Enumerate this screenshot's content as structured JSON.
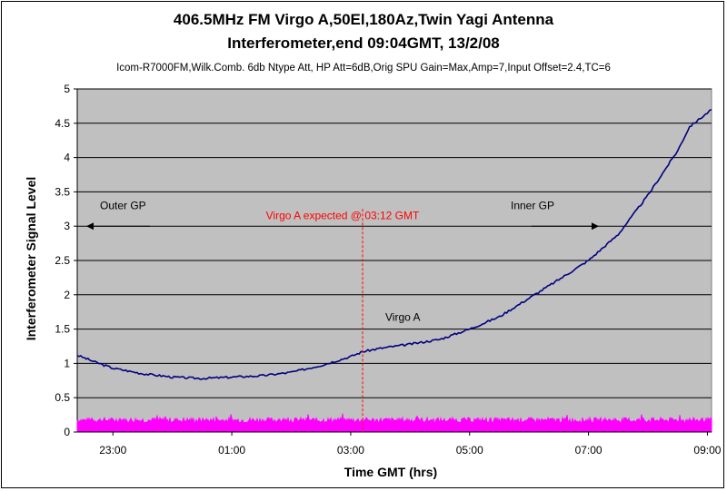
{
  "title": "406.5MHz FM Virgo A,50El,180Az,Twin Yagi Antenna",
  "subtitle": "Interferometer,end 09:04GMT, 13/2/08",
  "settings_line": "Icom-R7000FM,Wilk.Comb. 6db Ntype Att, HP Att=6dB,Orig SPU Gain=Max,Amp=7,Input Offset=2.4,TC=6",
  "colors": {
    "plot_background": "#c0c0c0",
    "signal_line": "#000080",
    "noise_band": "#ff00ff",
    "marker_line": "#ff0000",
    "annotation_red": "#ff0000"
  },
  "chart_data": {
    "type": "line",
    "title": "406.5MHz FM Virgo A,50El,180Az,Twin Yagi Antenna",
    "subtitle": "Interferometer,end 09:04GMT, 13/2/08",
    "xlabel": "Time GMT (hrs)",
    "ylabel": "Interferometer Signal Level",
    "ylim": [
      0,
      5
    ],
    "yticks": [
      "0",
      "0.5",
      "1",
      "1.5",
      "2",
      "2.5",
      "3",
      "3.5",
      "4",
      "4.5",
      "5"
    ],
    "xticks": [
      {
        "label": "23:00",
        "hours": -1
      },
      {
        "label": "01:00",
        "hours": 1
      },
      {
        "label": "03:00",
        "hours": 3
      },
      {
        "label": "05:00",
        "hours": 5
      },
      {
        "label": "07:00",
        "hours": 7
      },
      {
        "label": "09:00",
        "hours": 9
      }
    ],
    "xlim": [
      -1.6,
      9.07
    ],
    "grid": true,
    "series": [
      {
        "name": "Virgo A",
        "x": [
          -1.6,
          -1.3,
          -1.0,
          -0.5,
          0.0,
          0.5,
          1.0,
          1.5,
          2.0,
          2.5,
          3.0,
          3.2,
          3.5,
          4.0,
          4.5,
          5.0,
          5.5,
          6.0,
          6.5,
          7.0,
          7.5,
          8.0,
          8.5,
          8.7,
          9.0,
          9.07
        ],
        "values": [
          1.12,
          1.02,
          0.93,
          0.85,
          0.8,
          0.78,
          0.8,
          0.82,
          0.87,
          0.97,
          1.1,
          1.17,
          1.22,
          1.28,
          1.35,
          1.5,
          1.68,
          1.95,
          2.22,
          2.5,
          2.88,
          3.45,
          4.1,
          4.45,
          4.65,
          4.7
        ]
      },
      {
        "name": "noise",
        "x": [
          -1.6,
          9.07
        ],
        "values": [
          0.17,
          0.17
        ]
      }
    ],
    "marker": {
      "label": "Virgo A expected @ 03:12 GMT",
      "x": 3.2
    },
    "annotations": [
      {
        "label": "Outer GP",
        "arrow": "left"
      },
      {
        "label": "Inner GP",
        "arrow": "right"
      },
      {
        "label": "Virgo A"
      }
    ]
  }
}
